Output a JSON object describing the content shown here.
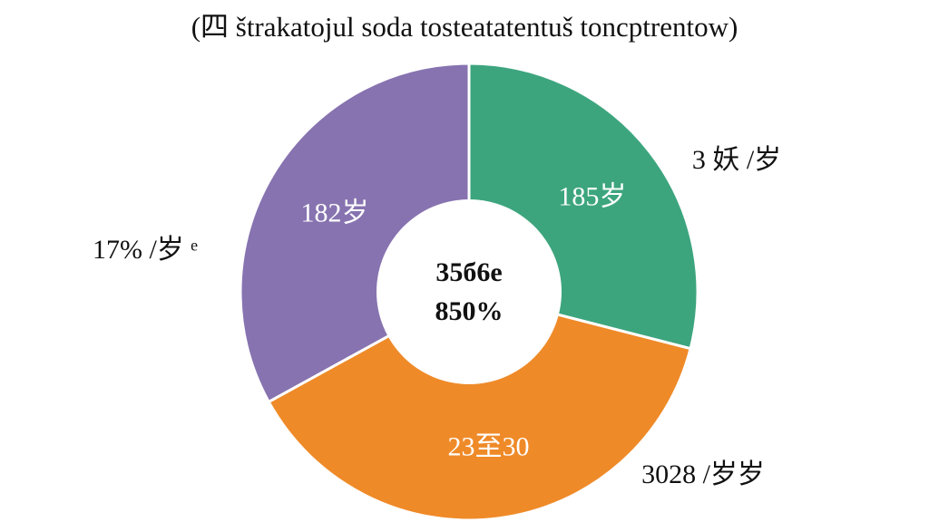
{
  "chart_data": {
    "type": "pie",
    "title": "(四 štrakatojul soda tosteatatentuš toncptrentow)",
    "donut": true,
    "start_angle_deg": 0,
    "direction": "clockwise",
    "center_text": [
      "35б6е",
      "850%"
    ],
    "slices": [
      {
        "value": 29,
        "color": "#3da57e",
        "inner_label": "185岁",
        "outer_label": "3 妖 /岁"
      },
      {
        "value": 38,
        "color": "#ef8a28",
        "inner_label": "23至30",
        "outer_label": "3028 /岁岁"
      },
      {
        "value": 33,
        "color": "#8773b0",
        "inner_label": "182岁",
        "outer_label": "17% /岁 ᵉ"
      }
    ],
    "slice_border_color": "#ffffff",
    "hole_color": "#ffffff"
  }
}
